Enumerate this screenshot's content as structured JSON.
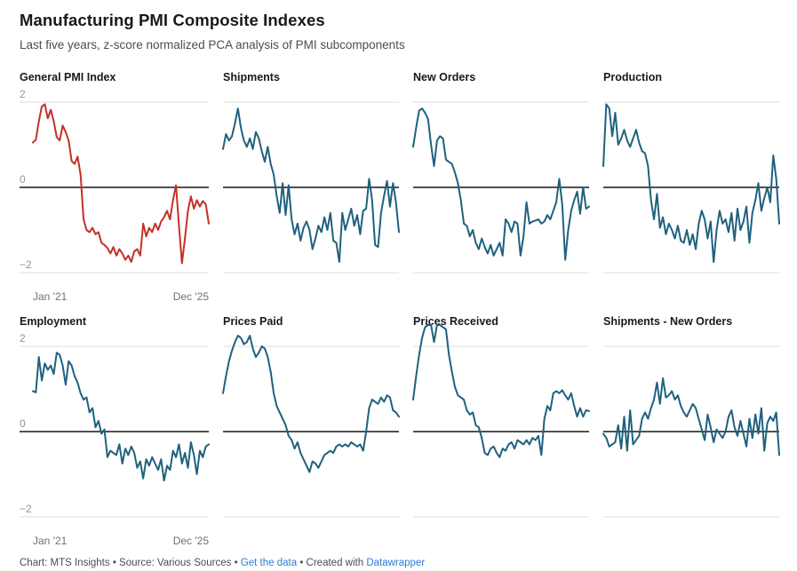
{
  "header": {
    "title": "Manufacturing PMI Composite Indexes",
    "subtitle": "Last five years, z-score normalized PCA analysis of PMI subcomponents"
  },
  "colors": {
    "accent_red": "#c43027",
    "series_teal": "#1f617e",
    "grid_line": "#dcdcdc",
    "zero_line": "#161616",
    "tick_label": "#949494",
    "x_label": "#6f7173",
    "link_blue": "#2e7ad1"
  },
  "footer": {
    "chart_credit": "Chart: MTS Insights",
    "separator": " • ",
    "source": "Source: Various Sources",
    "get_data_link": "Get the data",
    "created_with": "Created with ",
    "datawrapper_link": "Datawrapper"
  },
  "chart_data": [
    {
      "type": "line",
      "title": "General PMI Index",
      "color": "#c43027",
      "ylim": [
        -2,
        2
      ],
      "yticks": [
        2,
        0,
        -2
      ],
      "y_tick_labels": [
        "2",
        "0",
        "−2"
      ],
      "show_y_axis": true,
      "show_x_axis": true,
      "x_labels": [
        "Jan '21",
        "Dec '25"
      ],
      "values": [
        1.05,
        1.12,
        1.55,
        1.9,
        1.95,
        1.62,
        1.82,
        1.55,
        1.18,
        1.1,
        1.45,
        1.3,
        1.1,
        0.62,
        0.55,
        0.72,
        0.3,
        -0.75,
        -1.0,
        -1.05,
        -0.95,
        -1.1,
        -1.05,
        -1.3,
        -1.35,
        -1.42,
        -1.55,
        -1.4,
        -1.6,
        -1.45,
        -1.55,
        -1.7,
        -1.6,
        -1.75,
        -1.5,
        -1.45,
        -1.6,
        -0.85,
        -1.15,
        -0.95,
        -1.05,
        -0.85,
        -1.0,
        -0.8,
        -0.7,
        -0.55,
        -0.75,
        -0.3,
        0.05,
        -0.9,
        -1.78,
        -1.2,
        -0.55,
        -0.21,
        -0.5,
        -0.3,
        -0.45,
        -0.32,
        -0.4,
        -0.85
      ]
    },
    {
      "type": "line",
      "title": "Shipments",
      "color": "#1f617e",
      "ylim": [
        -2,
        2
      ],
      "yticks": [
        2,
        0,
        -2
      ],
      "show_y_axis": false,
      "show_x_axis": false,
      "values": [
        0.9,
        1.25,
        1.1,
        1.2,
        1.5,
        1.85,
        1.4,
        1.1,
        0.95,
        1.15,
        0.9,
        1.3,
        1.15,
        0.85,
        0.6,
        0.95,
        0.55,
        0.3,
        -0.2,
        -0.6,
        0.1,
        -0.65,
        0.05,
        -0.75,
        -1.1,
        -0.85,
        -1.25,
        -0.95,
        -0.8,
        -1.0,
        -1.45,
        -1.2,
        -0.9,
        -1.05,
        -0.7,
        -1.0,
        -0.6,
        -1.25,
        -1.3,
        -1.75,
        -0.6,
        -1.0,
        -0.75,
        -0.5,
        -0.9,
        -0.65,
        -1.1,
        -0.55,
        -0.5,
        0.2,
        -0.3,
        -1.35,
        -1.4,
        -0.6,
        -0.2,
        0.15,
        -0.45,
        0.1,
        -0.35,
        -1.05
      ]
    },
    {
      "type": "line",
      "title": "New Orders",
      "color": "#1f617e",
      "ylim": [
        -2,
        2
      ],
      "yticks": [
        2,
        0,
        -2
      ],
      "show_y_axis": false,
      "show_x_axis": false,
      "values": [
        0.95,
        1.4,
        1.8,
        1.85,
        1.75,
        1.6,
        1.0,
        0.5,
        1.1,
        1.2,
        1.15,
        0.65,
        0.6,
        0.55,
        0.35,
        0.1,
        -0.3,
        -0.85,
        -0.9,
        -1.15,
        -1.0,
        -1.3,
        -1.45,
        -1.2,
        -1.4,
        -1.55,
        -1.35,
        -1.6,
        -1.45,
        -1.3,
        -1.6,
        -0.75,
        -0.85,
        -1.05,
        -0.8,
        -0.85,
        -1.6,
        -1.15,
        -0.35,
        -0.85,
        -0.8,
        -0.78,
        -0.75,
        -0.85,
        -0.8,
        -0.65,
        -0.75,
        -0.55,
        -0.35,
        0.2,
        -0.4,
        -1.7,
        -1.0,
        -0.55,
        -0.3,
        -0.1,
        -0.62,
        0.0,
        -0.5,
        -0.45
      ]
    },
    {
      "type": "line",
      "title": "Production",
      "color": "#1f617e",
      "ylim": [
        -2,
        2
      ],
      "yticks": [
        2,
        0,
        -2
      ],
      "show_y_axis": false,
      "show_x_axis": false,
      "values": [
        0.5,
        1.95,
        1.85,
        1.2,
        1.75,
        1.0,
        1.15,
        1.35,
        1.1,
        0.95,
        1.15,
        1.35,
        1.05,
        0.85,
        0.8,
        0.5,
        -0.3,
        -0.75,
        -0.15,
        -0.95,
        -0.7,
        -1.1,
        -0.85,
        -1.0,
        -1.2,
        -0.9,
        -1.25,
        -1.3,
        -1.0,
        -1.35,
        -1.1,
        -1.45,
        -0.85,
        -0.55,
        -0.75,
        -1.2,
        -0.8,
        -1.75,
        -1.0,
        -0.55,
        -0.85,
        -0.75,
        -1.05,
        -0.6,
        -1.25,
        -0.5,
        -1.0,
        -0.8,
        -0.45,
        -1.3,
        -0.6,
        -0.3,
        0.1,
        -0.55,
        -0.25,
        0.0,
        -0.35,
        0.75,
        0.2,
        -0.85
      ]
    },
    {
      "type": "line",
      "title": "Employment",
      "color": "#1f617e",
      "ylim": [
        -2,
        2
      ],
      "yticks": [
        2,
        0,
        -2
      ],
      "y_tick_labels": [
        "2",
        "0",
        "−2"
      ],
      "show_y_axis": true,
      "show_x_axis": true,
      "x_labels": [
        "Jan '21",
        "Dec '25"
      ],
      "values": [
        0.95,
        0.92,
        1.75,
        1.2,
        1.6,
        1.45,
        1.55,
        1.35,
        1.85,
        1.8,
        1.55,
        1.1,
        1.65,
        1.55,
        1.3,
        1.15,
        0.9,
        0.75,
        0.8,
        0.45,
        0.55,
        0.1,
        0.25,
        -0.05,
        0.05,
        -0.6,
        -0.45,
        -0.5,
        -0.55,
        -0.3,
        -0.75,
        -0.4,
        -0.55,
        -0.35,
        -0.5,
        -0.85,
        -0.7,
        -1.1,
        -0.65,
        -0.8,
        -0.6,
        -0.75,
        -0.9,
        -0.65,
        -1.15,
        -0.8,
        -0.9,
        -0.45,
        -0.6,
        -0.3,
        -0.75,
        -0.5,
        -0.85,
        -0.25,
        -0.55,
        -1.0,
        -0.45,
        -0.6,
        -0.35,
        -0.3
      ]
    },
    {
      "type": "line",
      "title": "Prices Paid",
      "color": "#1f617e",
      "ylim": [
        -2,
        2
      ],
      "yticks": [
        2,
        0,
        -2
      ],
      "show_y_axis": false,
      "show_x_axis": false,
      "values": [
        0.9,
        1.3,
        1.65,
        1.9,
        2.1,
        2.25,
        2.2,
        2.05,
        2.1,
        2.25,
        1.95,
        1.75,
        1.85,
        2.0,
        1.95,
        1.75,
        1.4,
        0.9,
        0.6,
        0.45,
        0.3,
        0.15,
        -0.1,
        -0.2,
        -0.4,
        -0.25,
        -0.5,
        -0.65,
        -0.8,
        -0.95,
        -0.7,
        -0.75,
        -0.85,
        -0.7,
        -0.55,
        -0.5,
        -0.45,
        -0.5,
        -0.35,
        -0.3,
        -0.35,
        -0.3,
        -0.35,
        -0.25,
        -0.3,
        -0.35,
        -0.3,
        -0.45,
        0.0,
        0.55,
        0.75,
        0.7,
        0.65,
        0.8,
        0.7,
        0.85,
        0.8,
        0.5,
        0.45,
        0.35
      ]
    },
    {
      "type": "line",
      "title": "Prices Received",
      "color": "#1f617e",
      "ylim": [
        -2,
        2
      ],
      "yticks": [
        2,
        0,
        -2
      ],
      "show_y_axis": false,
      "show_x_axis": false,
      "values": [
        0.75,
        1.3,
        1.8,
        2.2,
        2.45,
        2.5,
        2.5,
        2.1,
        2.5,
        2.5,
        2.45,
        2.4,
        1.8,
        1.4,
        1.05,
        0.85,
        0.8,
        0.75,
        0.5,
        0.4,
        0.45,
        0.15,
        0.1,
        -0.15,
        -0.5,
        -0.55,
        -0.4,
        -0.35,
        -0.5,
        -0.6,
        -0.4,
        -0.45,
        -0.3,
        -0.25,
        -0.4,
        -0.2,
        -0.25,
        -0.3,
        -0.2,
        -0.3,
        -0.15,
        -0.2,
        -0.1,
        -0.55,
        0.3,
        0.6,
        0.5,
        0.9,
        0.95,
        0.9,
        0.97,
        0.85,
        0.75,
        0.9,
        0.6,
        0.35,
        0.55,
        0.35,
        0.5,
        0.48
      ]
    },
    {
      "type": "line",
      "title": "Shipments - New Orders",
      "color": "#1f617e",
      "ylim": [
        -2,
        2
      ],
      "yticks": [
        2,
        0,
        -2
      ],
      "show_y_axis": false,
      "show_x_axis": false,
      "values": [
        -0.05,
        -0.15,
        -0.35,
        -0.3,
        -0.25,
        0.15,
        -0.4,
        0.35,
        -0.45,
        0.5,
        -0.3,
        -0.2,
        -0.1,
        0.3,
        0.45,
        0.3,
        0.55,
        0.75,
        1.15,
        0.65,
        1.25,
        0.8,
        0.85,
        0.95,
        0.75,
        0.85,
        0.6,
        0.45,
        0.35,
        0.5,
        0.65,
        0.55,
        0.3,
        0.05,
        -0.2,
        0.4,
        0.1,
        -0.25,
        0.05,
        -0.05,
        -0.15,
        0.0,
        0.35,
        0.5,
        0.1,
        -0.1,
        0.25,
        -0.05,
        -0.35,
        0.3,
        -0.15,
        0.4,
        -0.05,
        0.55,
        -0.45,
        0.2,
        0.35,
        0.25,
        0.45,
        -0.55
      ]
    }
  ]
}
